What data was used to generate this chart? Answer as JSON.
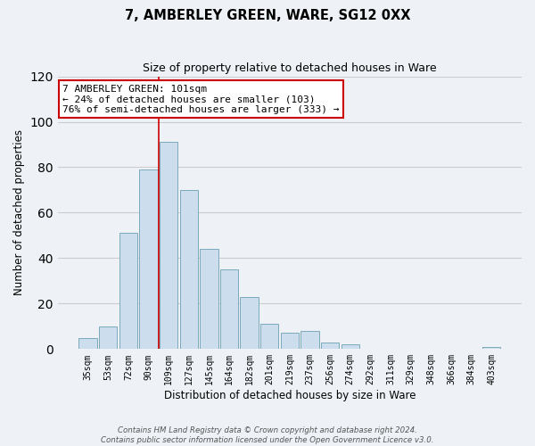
{
  "title": "7, AMBERLEY GREEN, WARE, SG12 0XX",
  "subtitle": "Size of property relative to detached houses in Ware",
  "xlabel": "Distribution of detached houses by size in Ware",
  "ylabel": "Number of detached properties",
  "categories": [
    "35sqm",
    "53sqm",
    "72sqm",
    "90sqm",
    "109sqm",
    "127sqm",
    "145sqm",
    "164sqm",
    "182sqm",
    "201sqm",
    "219sqm",
    "237sqm",
    "256sqm",
    "274sqm",
    "292sqm",
    "311sqm",
    "329sqm",
    "348sqm",
    "366sqm",
    "384sqm",
    "403sqm"
  ],
  "values": [
    5,
    10,
    51,
    79,
    91,
    70,
    44,
    35,
    23,
    11,
    7,
    8,
    3,
    2,
    0,
    0,
    0,
    0,
    0,
    0,
    1
  ],
  "bar_color": "#ccdded",
  "bar_edge_color": "#7aaabb",
  "property_vline_index": 4,
  "annotation_line1": "7 AMBERLEY GREEN: 101sqm",
  "annotation_line2": "← 24% of detached houses are smaller (103)",
  "annotation_line3": "76% of semi-detached houses are larger (333) →",
  "annotation_box_facecolor": "#ffffff",
  "annotation_box_edgecolor": "#cc0000",
  "property_vline_color": "#cc0000",
  "ylim": [
    0,
    120
  ],
  "yticks": [
    0,
    20,
    40,
    60,
    80,
    100,
    120
  ],
  "grid_color": "#cccccc",
  "bg_color": "#eef2f6",
  "footnote1": "Contains HM Land Registry data © Crown copyright and database right 2024.",
  "footnote2": "Contains public sector information licensed under the Open Government Licence v3.0."
}
